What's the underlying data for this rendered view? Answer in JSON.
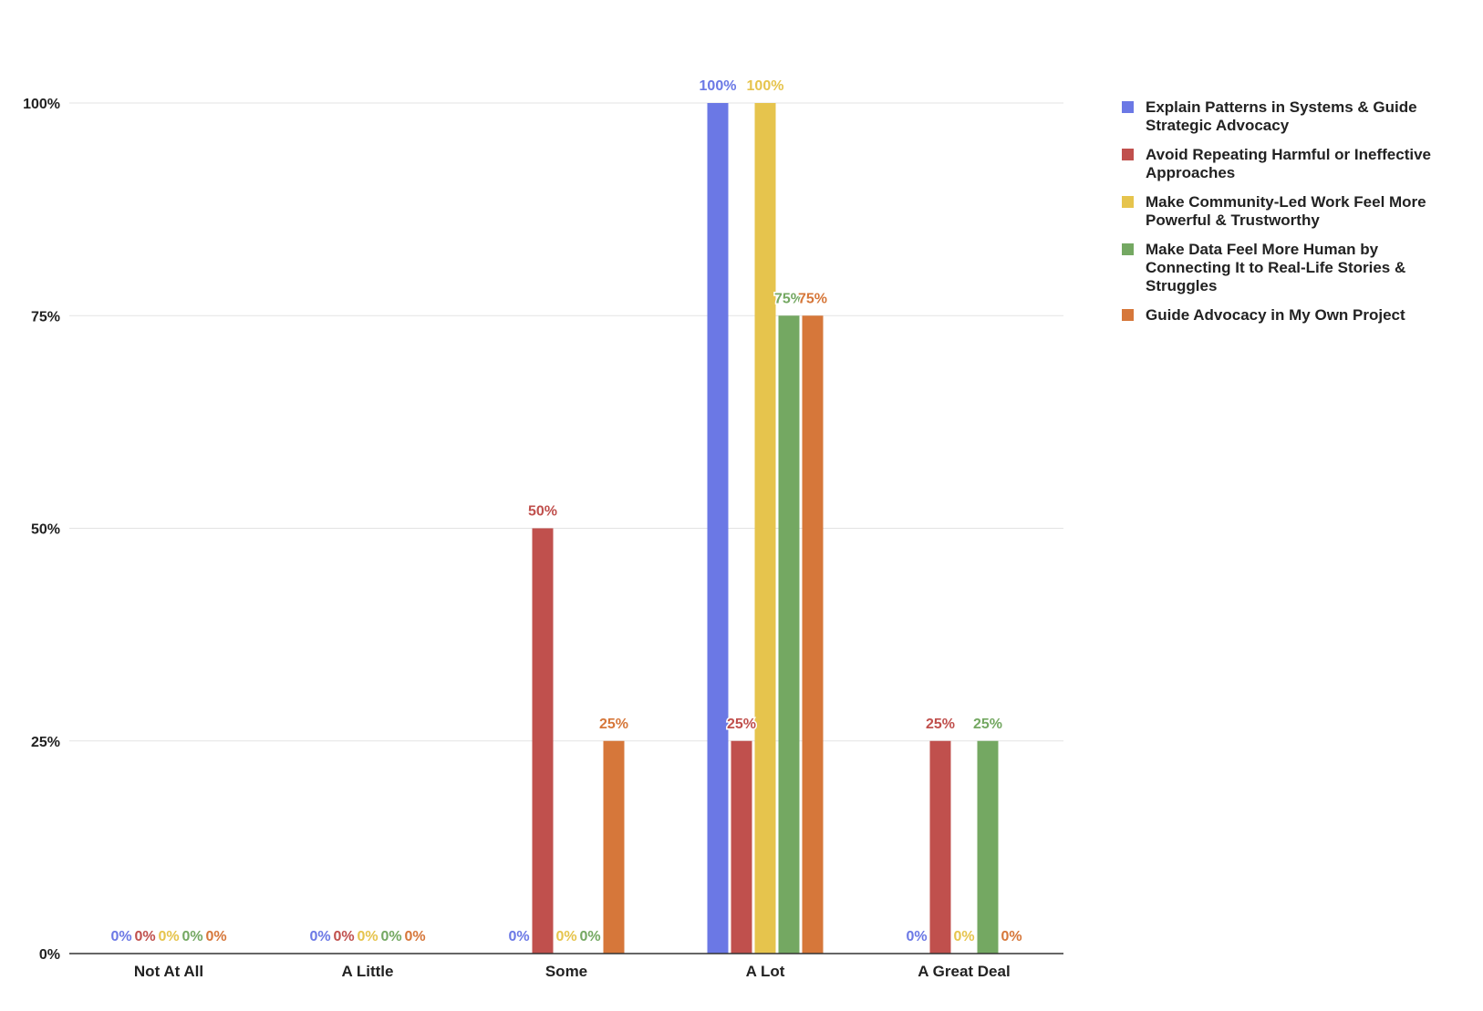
{
  "chart_data": {
    "type": "bar",
    "title": "",
    "xlabel": "",
    "ylabel": "",
    "categories": [
      "Not At All",
      "A Little",
      "Some",
      "A Lot",
      "A Great Deal"
    ],
    "ylim": [
      0,
      100
    ],
    "yticks": [
      0,
      25,
      50,
      75,
      100
    ],
    "ytick_labels": [
      "0%",
      "25%",
      "50%",
      "75%",
      "100%"
    ],
    "grid": true,
    "legend_position": "right",
    "series": [
      {
        "name": "Explain Patterns in Systems & Guide Strategic Advocacy",
        "legend_lines": [
          "Explain Patterns in Systems & Guide",
          "Strategic Advocacy"
        ],
        "color": "#6b78e5",
        "values": [
          0,
          0,
          0,
          100,
          0
        ],
        "labels": [
          "0%",
          "0%",
          "0%",
          "100%",
          "0%"
        ]
      },
      {
        "name": "Avoid Repeating Harmful or Ineffective Approaches",
        "legend_lines": [
          "Avoid Repeating Harmful or Ineffective",
          "Approaches"
        ],
        "color": "#c0504d",
        "values": [
          0,
          0,
          50,
          25,
          25
        ],
        "labels": [
          "0%",
          "0%",
          "50%",
          "25%",
          "25%"
        ]
      },
      {
        "name": "Make Community-Led Work Feel More Powerful & Trustworthy",
        "legend_lines": [
          "Make Community-Led Work Feel More",
          "Powerful & Trustworthy"
        ],
        "color": "#e6c44d",
        "values": [
          0,
          0,
          0,
          100,
          0
        ],
        "labels": [
          "0%",
          "0%",
          "0%",
          "100%",
          "0%"
        ]
      },
      {
        "name": "Make Data Feel More Human by Connecting It to Real-Life Stories & Struggles",
        "legend_lines": [
          "Make Data Feel More Human by",
          "Connecting It to Real-Life Stories &",
          "Struggles"
        ],
        "color": "#74a862",
        "values": [
          0,
          0,
          0,
          75,
          25
        ],
        "labels": [
          "0%",
          "0%",
          "0%",
          "75%",
          "25%"
        ]
      },
      {
        "name": "Guide Advocacy in My Own Project",
        "legend_lines": [
          "Guide Advocacy in My Own Project"
        ],
        "color": "#d6773a",
        "values": [
          0,
          0,
          25,
          75,
          0
        ],
        "labels": [
          "0%",
          "0%",
          "25%",
          "75%",
          "0%"
        ]
      }
    ]
  }
}
